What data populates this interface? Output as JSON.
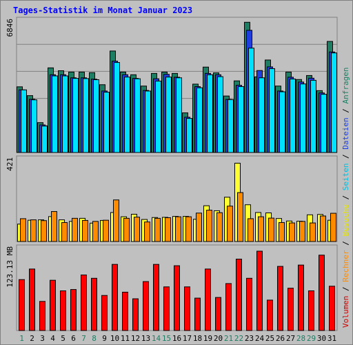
{
  "chart_data": {
    "type": "bar",
    "title": "Tages-Statistik im Monat Januar 2023",
    "categories": [
      "1",
      "2",
      "3",
      "4",
      "5",
      "6",
      "7",
      "8",
      "9",
      "10",
      "11",
      "12",
      "13",
      "14",
      "15",
      "16",
      "17",
      "18",
      "19",
      "20",
      "21",
      "22",
      "23",
      "24",
      "25",
      "26",
      "27",
      "28",
      "29",
      "30",
      "31"
    ],
    "weekend_days": [
      "1",
      "7",
      "8",
      "14",
      "15",
      "21",
      "22",
      "28",
      "29"
    ],
    "panels": [
      {
        "name": "requests",
        "ymax_label": "6846",
        "ymax": 6846,
        "series": [
          {
            "name": "Anfragen",
            "color": "#1e7e64",
            "values": [
              3430,
              2970,
              1560,
              4420,
              4270,
              4200,
              4200,
              4170,
              3540,
              5300,
              4200,
              4060,
              3470,
              4130,
              4200,
              4130,
              2070,
              3570,
              4460,
              4160,
              2950,
              3740,
              6800,
              3950,
              4830,
              3470,
              4200,
              3810,
              4020,
              3230,
              5800
            ]
          },
          {
            "name": "Dateien",
            "color": "#1f3fdf",
            "values": [
              3270,
              2780,
              1440,
              4060,
              4060,
              3900,
              3900,
              3830,
              3210,
              4770,
              4060,
              3870,
              3240,
              3850,
              4080,
              3930,
              1840,
              3440,
              4130,
              4060,
              2770,
              3510,
              6380,
              4280,
              4470,
              3210,
              3930,
              3680,
              3880,
              3110,
              5250
            ]
          },
          {
            "name": "Seiten",
            "color": "#00e0ff",
            "values": [
              3270,
              2750,
              1380,
              4000,
              4000,
              3870,
              3860,
              3800,
              3150,
              4700,
              3940,
              3850,
              3210,
              3730,
              3940,
              3900,
              1780,
              3380,
              4060,
              3960,
              2760,
              3440,
              5450,
              3900,
              4380,
              3170,
              3840,
              3580,
              3770,
              3040,
              5200
            ]
          }
        ]
      },
      {
        "name": "visits",
        "ymax_label": "421",
        "ymax": 421,
        "series": [
          {
            "name": "Besuche",
            "color": "#ffff33",
            "values": [
              90,
              110,
              112,
              129,
              112,
              104,
              120,
              95,
              109,
              150,
              128,
              141,
              114,
              124,
              125,
              130,
              130,
              115,
              185,
              159,
              229,
              405,
              190,
              150,
              148,
              119,
              106,
              105,
              138,
              140,
              110
            ]
          },
          {
            "name": "Rechner",
            "color": "#ff8c00",
            "values": [
              118,
              112,
              108,
              155,
              98,
              120,
              109,
              104,
              110,
              215,
              120,
              126,
              101,
              120,
              123,
              128,
              128,
              147,
              162,
              149,
              183,
              253,
              118,
              128,
              121,
              98,
              96,
              104,
              96,
              132,
              146
            ]
          }
        ]
      },
      {
        "name": "volume",
        "ymax_label": "123.13 MB",
        "ymax": 123.13,
        "series": [
          {
            "name": "Volumen",
            "color": "#ff0000",
            "values": [
              77,
              93,
              44,
              76,
              60,
              62,
              84,
              79,
              53,
              100,
              58,
              48,
              74,
              100,
              66,
              98,
              66,
              49,
              93,
              50,
              71,
              108,
              79,
              120,
              46,
              97,
              64,
              99,
              60,
              114,
              67
            ]
          }
        ]
      }
    ],
    "side_legend": [
      {
        "label": "Volumen",
        "color": "#cc0000"
      },
      {
        "label": "/",
        "color": "#000000"
      },
      {
        "label": "Rechner",
        "color": "#ff8c00"
      },
      {
        "label": "/",
        "color": "#000000"
      },
      {
        "label": "Besuche",
        "color": "#e6e600"
      },
      {
        "label": "/",
        "color": "#000000"
      },
      {
        "label": "Seiten",
        "color": "#00c0e0"
      },
      {
        "label": "/",
        "color": "#000000"
      },
      {
        "label": "Dateien",
        "color": "#1f3fdf"
      },
      {
        "label": "/",
        "color": "#000000"
      },
      {
        "label": "Anfragen",
        "color": "#1e7e64"
      }
    ],
    "colors": {
      "background": "#c0c0c0",
      "grid": "#808080",
      "title": "#0000ff",
      "weekday_label": "#000000",
      "weekend_label": "#1e7e64"
    }
  }
}
